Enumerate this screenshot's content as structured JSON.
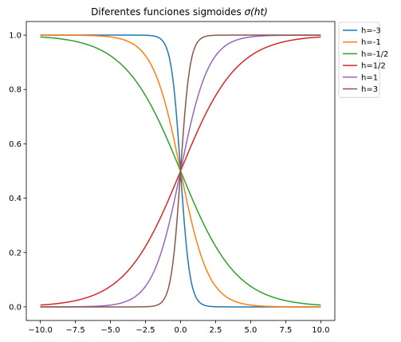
{
  "chart_data": {
    "type": "line",
    "title": "Diferentes funciones sigmoides σ(ht)",
    "title_prefix": "Diferentes funciones sigmoides ",
    "title_math": "σ(ht)",
    "xlabel": "",
    "ylabel": "",
    "xlim": [
      -11,
      11
    ],
    "ylim": [
      -0.05,
      1.05
    ],
    "x_ticks": [
      -10,
      -7.5,
      -5,
      -2.5,
      0,
      2.5,
      5,
      7.5,
      10
    ],
    "x_tick_labels": [
      "−10.0",
      "−7.5",
      "−5.0",
      "−2.5",
      "0.0",
      "2.5",
      "5.0",
      "7.5",
      "10.0"
    ],
    "y_ticks": [
      0,
      0.2,
      0.4,
      0.6,
      0.8,
      1.0
    ],
    "y_tick_labels": [
      "0.0",
      "0.2",
      "0.4",
      "0.6",
      "0.8",
      "1.0"
    ],
    "x_range": [
      -10,
      10
    ],
    "function": "y = 1 / (1 + exp(-h·t))",
    "grid": false,
    "legend_position": "outside-top-right",
    "series": [
      {
        "name": "h=-3",
        "h": -3,
        "color": "#1f77b4"
      },
      {
        "name": "h=-1",
        "h": -1,
        "color": "#ff7f0e"
      },
      {
        "name": "h=-1/2",
        "h": -0.5,
        "color": "#2ca02c"
      },
      {
        "name": "h=1/2",
        "h": 0.5,
        "color": "#d62728"
      },
      {
        "name": "h=1",
        "h": 1,
        "color": "#9467bd"
      },
      {
        "name": "h=3",
        "h": 3,
        "color": "#8c564b"
      }
    ]
  }
}
